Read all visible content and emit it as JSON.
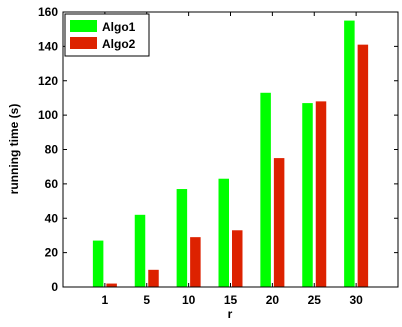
{
  "chart_data": {
    "type": "bar",
    "categories": [
      "1",
      "5",
      "10",
      "15",
      "20",
      "25",
      "30"
    ],
    "series": [
      {
        "name": "Algo1",
        "color": "#00ff00",
        "values": [
          27,
          42,
          57,
          63,
          113,
          107,
          155
        ]
      },
      {
        "name": "Algo2",
        "color": "#dd2200",
        "values": [
          2,
          10,
          29,
          33,
          75,
          108,
          141
        ]
      }
    ],
    "title": "",
    "xlabel": "r",
    "ylabel": "running time (s)",
    "ylim": [
      0,
      160
    ],
    "yticks": [
      0,
      20,
      40,
      60,
      80,
      100,
      120,
      140,
      160
    ],
    "grid": false,
    "legend_position": "top-left"
  }
}
